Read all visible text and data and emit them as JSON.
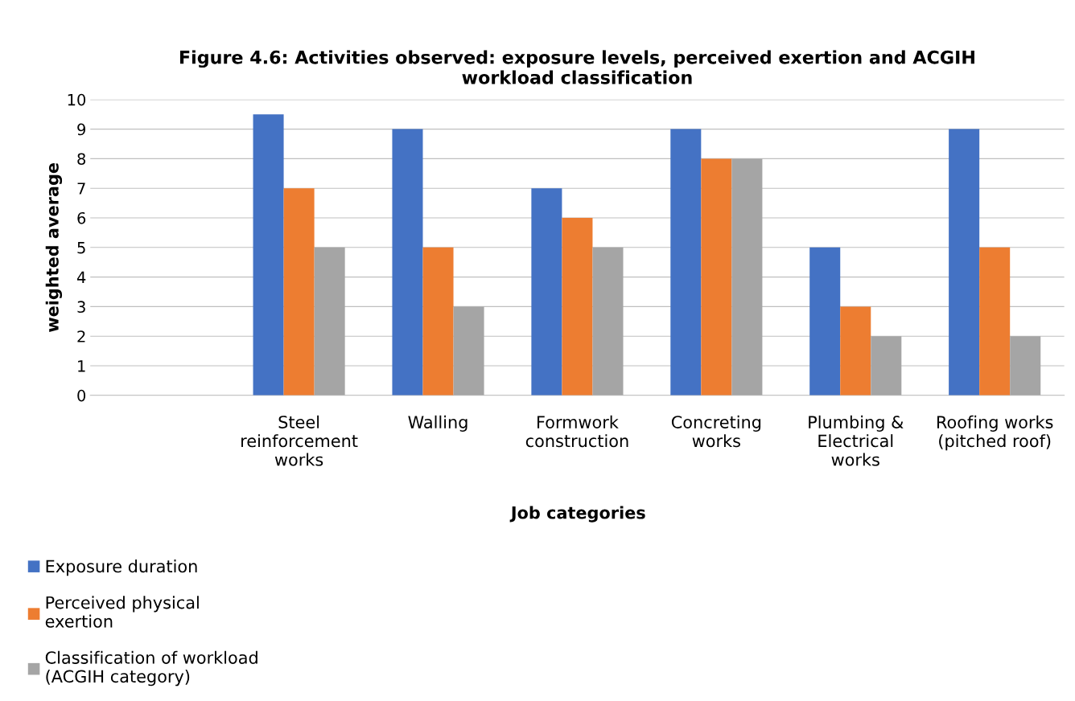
{
  "chart_data": {
    "type": "bar",
    "title": "Figure 4.6: Activities observed: exposure levels, perceived exertion and ACGIH\nworkload classification",
    "xlabel": "Job categories",
    "ylabel": "weighted average",
    "categories": [
      null,
      "Steel\nreinforcement\nworks",
      "Walling",
      "Formwork\nconstruction",
      "Concreting\nworks",
      "Plumbing &\nElectrical\nworks",
      "Roofing works\n(pitched roof)"
    ],
    "series": [
      {
        "name": "Exposure duration",
        "color": "#4472c4",
        "values": [
          null,
          9.5,
          9,
          7,
          9,
          5,
          9
        ]
      },
      {
        "name": "Perceived physical\nexertion",
        "color": "#ed7d31",
        "values": [
          null,
          7,
          5,
          6,
          8,
          3,
          5
        ]
      },
      {
        "name": "Classification of workload\n(ACGIH category)",
        "color": "#a5a5a5",
        "values": [
          null,
          5,
          3,
          5,
          8,
          2,
          2
        ]
      }
    ],
    "ylim": [
      0,
      10
    ],
    "yticks": [
      0,
      1,
      2,
      3,
      4,
      5,
      6,
      7,
      8,
      9,
      10
    ],
    "grid": "y",
    "legend": "bottom left"
  }
}
